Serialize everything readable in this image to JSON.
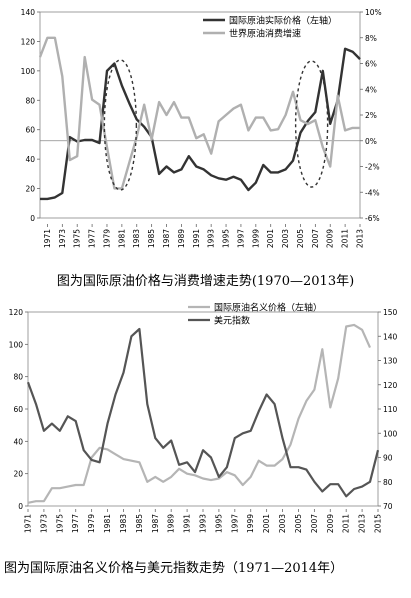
{
  "charts": [
    {
      "caption": "图为国际原油价格与消费增速走势(1970—2013年)",
      "chart_data": {
        "type": "line",
        "x": [
          1970,
          1971,
          1972,
          1973,
          1974,
          1975,
          1976,
          1977,
          1978,
          1979,
          1980,
          1981,
          1982,
          1983,
          1984,
          1985,
          1986,
          1987,
          1988,
          1989,
          1990,
          1991,
          1992,
          1993,
          1994,
          1995,
          1996,
          1997,
          1998,
          1999,
          2000,
          2001,
          2002,
          2003,
          2004,
          2005,
          2006,
          2007,
          2008,
          2009,
          2010,
          2011,
          2012,
          2013
        ],
        "x_ticks": [
          1971,
          1973,
          1975,
          1977,
          1979,
          1981,
          1983,
          1985,
          1987,
          1989,
          1991,
          1993,
          1995,
          1997,
          1999,
          2001,
          2003,
          2005,
          2007,
          2009,
          2011,
          2013
        ],
        "series": [
          {
            "name": "国际原油实际价格（左轴）",
            "axis": "left",
            "color": "#333333",
            "values": [
              13,
              13,
              14,
              17,
              55,
              52,
              53,
              53,
              51,
              100,
              105,
              90,
              78,
              67,
              62,
              55,
              30,
              35,
              31,
              33,
              42,
              35,
              33,
              29,
              27,
              26,
              28,
              26,
              19,
              24,
              36,
              31,
              31,
              33,
              39,
              58,
              66,
              72,
              100,
              64,
              80,
              115,
              113,
              108
            ]
          },
          {
            "name": "世界原油消费增速",
            "axis": "right",
            "color": "#b0b0b0",
            "values": [
              6.5,
              8.0,
              8.0,
              5.0,
              -1.5,
              -1.2,
              6.5,
              3.2,
              2.8,
              -0.5,
              -3.7,
              -3.7,
              -1.7,
              0.3,
              2.8,
              0.1,
              3.0,
              2.0,
              3.0,
              1.8,
              1.8,
              0.2,
              0.5,
              -1.0,
              1.5,
              2.0,
              2.5,
              2.8,
              0.8,
              1.8,
              1.8,
              0.8,
              0.9,
              2.0,
              3.8,
              1.6,
              1.3,
              1.6,
              -0.5,
              -2.0,
              3.5,
              0.8,
              1.0,
              1.0
            ]
          }
        ],
        "left_axis": {
          "min": 0,
          "max": 140,
          "step": 20,
          "ticks": [
            "0",
            "20",
            "40",
            "60",
            "80",
            "100",
            "120",
            "140"
          ]
        },
        "right_axis": {
          "min": -6,
          "max": 10,
          "step": 2,
          "ticks": [
            "-6%",
            "-4%",
            "-2%",
            "0%",
            "2%",
            "4%",
            "6%",
            "8%",
            "10%"
          ]
        },
        "annotations": [
          "dashed-ellipse around 1979-1982 peak",
          "dashed-ellipse around 2006-2008 peak"
        ]
      }
    },
    {
      "caption": "图为国际原油名义价格与美元指数走势（1971—2014年）",
      "chart_data": {
        "type": "line",
        "x": [
          1971,
          1972,
          1973,
          1974,
          1975,
          1976,
          1977,
          1978,
          1979,
          1980,
          1981,
          1982,
          1983,
          1984,
          1985,
          1986,
          1987,
          1988,
          1989,
          1990,
          1991,
          1992,
          1993,
          1994,
          1995,
          1996,
          1997,
          1998,
          1999,
          2000,
          2001,
          2002,
          2003,
          2004,
          2005,
          2006,
          2007,
          2008,
          2009,
          2010,
          2011,
          2012,
          2013,
          2014,
          2015
        ],
        "x_ticks": [
          1971,
          1973,
          1975,
          1977,
          1979,
          1981,
          1983,
          1985,
          1987,
          1989,
          1991,
          1993,
          1995,
          1997,
          1999,
          2001,
          2003,
          2005,
          2007,
          2009,
          2011,
          2013,
          2015
        ],
        "series": [
          {
            "name": "国际原油名义价格（左轴）",
            "axis": "left",
            "color": "#b5b5b5",
            "values": [
              2,
              3,
              3,
              11,
              11,
              12,
              13,
              13,
              30,
              36,
              35,
              32,
              29,
              28,
              27,
              15,
              18,
              15,
              18,
              23,
              20,
              19,
              17,
              16,
              17,
              21,
              19,
              13,
              18,
              28,
              25,
              25,
              29,
              38,
              54,
              65,
              72,
              97,
              61,
              79,
              111,
              112,
              109,
              98,
              null
            ]
          },
          {
            "name": "美元指数",
            "axis": "right",
            "color": "#555555",
            "values": [
              121,
              112,
              101,
              104,
              101,
              107,
              105,
              93,
              89,
              88,
              104,
              116,
              125,
              140,
              143,
              112,
              98,
              94,
              97,
              87,
              88,
              84,
              93,
              90,
              82,
              86,
              98,
              100,
              101,
              109,
              116,
              112,
              98,
              86,
              86,
              85,
              80,
              76,
              79,
              79,
              74,
              77,
              78,
              80,
              93
            ]
          }
        ],
        "left_axis": {
          "min": 0,
          "max": 120,
          "step": 20,
          "ticks": [
            "0",
            "20",
            "40",
            "60",
            "80",
            "100",
            "120"
          ]
        },
        "right_axis": {
          "min": 70,
          "max": 150,
          "step": 10,
          "ticks": [
            "70",
            "80",
            "90",
            "100",
            "110",
            "120",
            "130",
            "140",
            "150"
          ]
        }
      }
    }
  ]
}
